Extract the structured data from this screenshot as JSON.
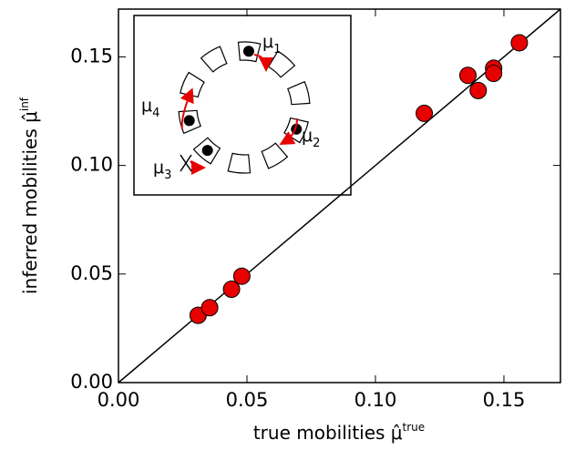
{
  "chart_data": {
    "type": "scatter",
    "xlabel": "true mobilities",
    "xlabel_symbol": "μ̂",
    "xlabel_sup": "true",
    "ylabel": "inferred mobilities",
    "ylabel_symbol": "μ̂",
    "ylabel_sup": "inf",
    "x": [
      0.031,
      0.0355,
      0.044,
      0.048,
      0.119,
      0.136,
      0.14,
      0.146,
      0.146,
      0.156
    ],
    "values": [
      0.031,
      0.0345,
      0.043,
      0.049,
      0.124,
      0.1415,
      0.1345,
      0.1448,
      0.1424,
      0.1565
    ],
    "color": "#e60000",
    "xlim": [
      0,
      0.172
    ],
    "ylim": [
      0,
      0.172
    ],
    "xticks": [
      {
        "value": 0,
        "label": "0.00"
      },
      {
        "value": 0.05,
        "label": "0.05"
      },
      {
        "value": 0.1,
        "label": "0.10"
      },
      {
        "value": 0.15,
        "label": "0.15"
      }
    ],
    "yticks": [
      {
        "value": 0,
        "label": "0.00"
      },
      {
        "value": 0.05,
        "label": "0.05"
      },
      {
        "value": 0.1,
        "label": "0.10"
      },
      {
        "value": 0.15,
        "label": "0.15"
      }
    ],
    "inset": {
      "symbol": "μ",
      "subscripts": [
        "1",
        "2",
        "3",
        "4"
      ]
    }
  }
}
